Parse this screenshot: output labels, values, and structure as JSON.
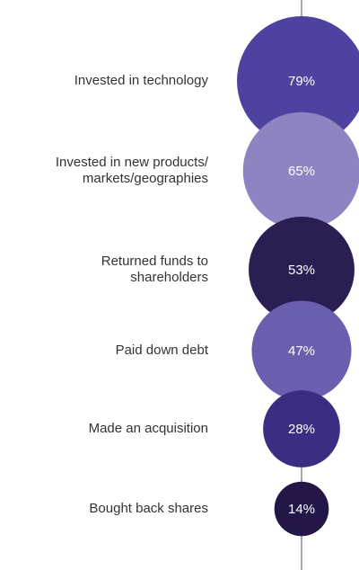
{
  "chart_data": {
    "type": "bubble",
    "categories": [
      "Invested in technology",
      "Invested in new products/\nmarkets/geographies",
      "Returned funds to\nshareholders",
      "Paid down debt",
      "Made an acquisition",
      "Bought back shares"
    ],
    "values": [
      79,
      65,
      53,
      47,
      28,
      14
    ],
    "value_labels": [
      "79%",
      "65%",
      "53%",
      "47%",
      "28%",
      "14%"
    ],
    "colors": [
      "#4d42a0",
      "#8e84c2",
      "#2a1e52",
      "#6a5eae",
      "#3b2d82",
      "#241747"
    ]
  }
}
